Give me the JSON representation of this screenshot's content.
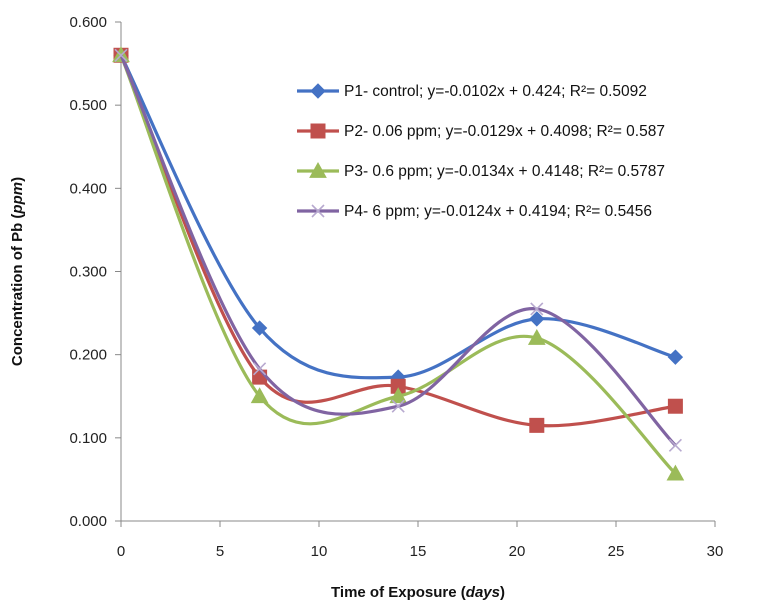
{
  "chart_data": {
    "type": "line",
    "xlabel_main": "Time of Exposure (",
    "xlabel_unit": "days",
    "xlabel_end": ")",
    "ylabel_main": "Concentration of Pb (",
    "ylabel_unit": "ppm",
    "ylabel_end": ")",
    "xlim": [
      0,
      30
    ],
    "ylim": [
      0,
      0.6
    ],
    "x_ticks": [
      "0",
      "5",
      "10",
      "15",
      "20",
      "25",
      "30"
    ],
    "y_ticks": [
      "0.000",
      "0.100",
      "0.200",
      "0.300",
      "0.400",
      "0.500",
      "0.600"
    ],
    "x": [
      0,
      7,
      14,
      21,
      28
    ],
    "legend_position": "top-right",
    "smoothed": true,
    "series": [
      {
        "name": "P1- control; y=-0.0102x + 0.424; R²= 0.5092",
        "marker": "diamond",
        "color": "#4472C4",
        "values": [
          0.56,
          0.232,
          0.173,
          0.243,
          0.197
        ]
      },
      {
        "name": "P2- 0.06 ppm; y=-0.0129x + 0.4098; R²= 0.587",
        "marker": "square",
        "color": "#C0504D",
        "values": [
          0.56,
          0.173,
          0.162,
          0.115,
          0.138
        ]
      },
      {
        "name": "P3- 0.6 ppm; y=-0.0134x + 0.4148; R²= 0.5787",
        "marker": "triangle",
        "color": "#9BBB59",
        "values": [
          0.56,
          0.15,
          0.15,
          0.22,
          0.057
        ]
      },
      {
        "name": "P4- 6 ppm; y=-0.0124x + 0.4194; R²= 0.5456",
        "marker": "cross",
        "color": "#8064A2",
        "values": [
          0.56,
          0.183,
          0.138,
          0.255,
          0.091
        ]
      }
    ]
  }
}
